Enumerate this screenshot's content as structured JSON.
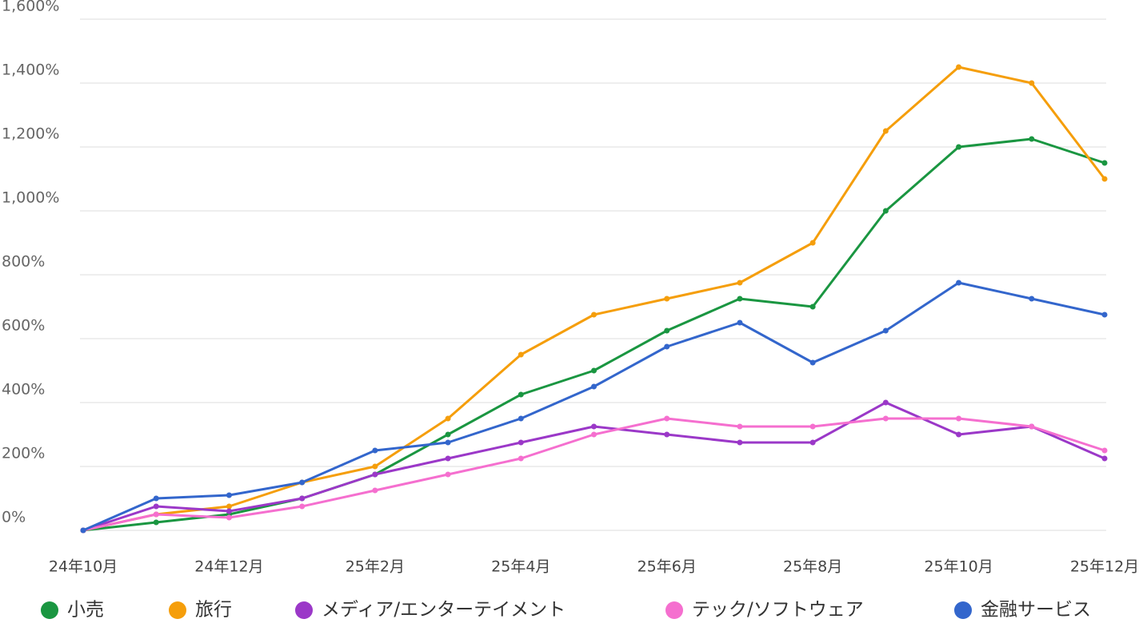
{
  "chart_data": {
    "type": "line",
    "categories": [
      "24年10月",
      null,
      "24年12月",
      null,
      "25年2月",
      null,
      "25年4月",
      null,
      "25年6月",
      null,
      "25年8月",
      null,
      "25年10月",
      null,
      "25年12月"
    ],
    "series": [
      {
        "name": "小売",
        "color": "#1a9641",
        "values": [
          0,
          25,
          50,
          100,
          175,
          300,
          425,
          500,
          625,
          725,
          700,
          1000,
          1200,
          1225,
          1150
        ]
      },
      {
        "name": "旅行",
        "color": "#f59e0b",
        "values": [
          0,
          50,
          75,
          150,
          200,
          350,
          550,
          675,
          725,
          775,
          900,
          1250,
          1450,
          1400,
          1100
        ]
      },
      {
        "name": "メディア/エンターテイメント",
        "color": "#9b38c8",
        "values": [
          0,
          75,
          60,
          100,
          175,
          225,
          275,
          325,
          300,
          275,
          275,
          400,
          300,
          325,
          225
        ]
      },
      {
        "name": "テック/ソフトウェア",
        "color": "#f56fcf",
        "values": [
          0,
          50,
          40,
          75,
          125,
          175,
          225,
          300,
          350,
          325,
          325,
          350,
          350,
          325,
          250
        ]
      },
      {
        "name": "金融サービス",
        "color": "#3366cc",
        "values": [
          0,
          100,
          110,
          150,
          250,
          275,
          350,
          450,
          575,
          650,
          525,
          625,
          775,
          725,
          675
        ]
      }
    ],
    "ylim": [
      0,
      1600
    ],
    "yticks": [
      {
        "value": 0,
        "label": "0%"
      },
      {
        "value": 200,
        "label": "200%"
      },
      {
        "value": 400,
        "label": "400%"
      },
      {
        "value": 600,
        "label": "600%"
      },
      {
        "value": 800,
        "label": "800%"
      },
      {
        "value": 1000,
        "label": "1,000%"
      },
      {
        "value": 1200,
        "label": "1,200%"
      },
      {
        "value": 1400,
        "label": "1,400%"
      },
      {
        "value": 1600,
        "label": "1,600%"
      }
    ],
    "grid": true
  }
}
